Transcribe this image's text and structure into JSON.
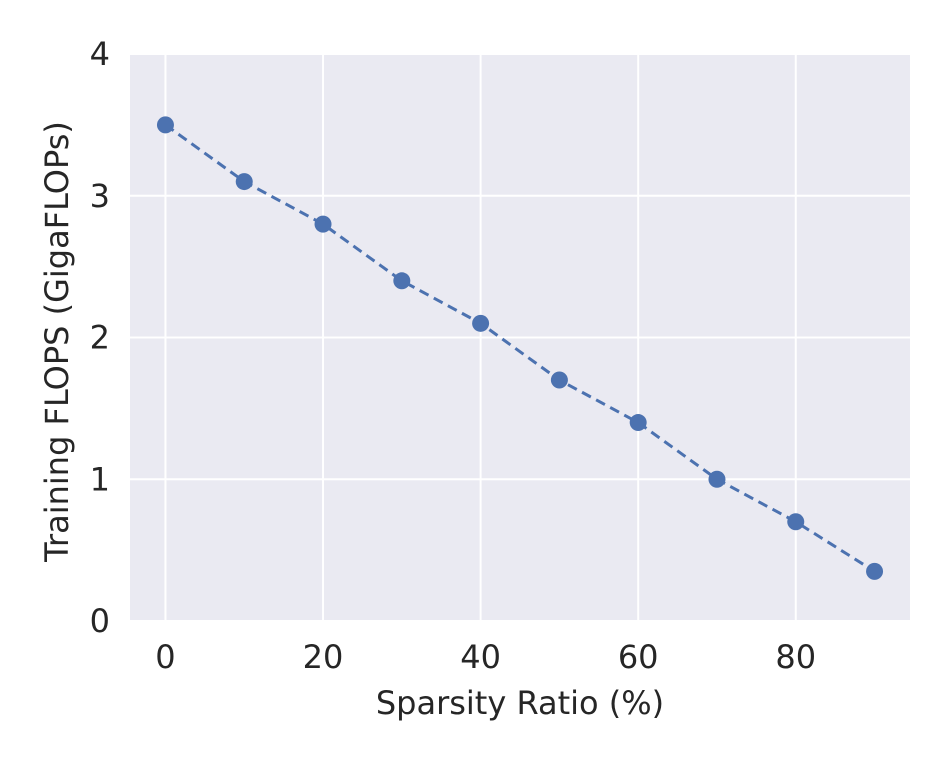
{
  "chart_data": {
    "type": "line",
    "title": "",
    "xlabel": "Sparsity Ratio (%)",
    "ylabel": "Training FLOPS (GigaFLOPs)",
    "xlim": [
      -4.5,
      94.5
    ],
    "ylim": [
      0,
      4
    ],
    "xticks": [
      0,
      20,
      40,
      60,
      80
    ],
    "yticks": [
      0,
      1,
      2,
      3,
      4
    ],
    "grid": true,
    "legend": "none",
    "series": [
      {
        "x": [
          0,
          10,
          20,
          30,
          40,
          50,
          60,
          70,
          80,
          90
        ],
        "y": [
          3.5,
          3.1,
          2.8,
          2.4,
          2.1,
          1.7,
          1.4,
          1.0,
          0.7,
          0.35
        ],
        "color": "#4c72b0",
        "line_style": "dashed",
        "marker": "circle"
      }
    ],
    "colors": {
      "plot_background": "#eaeaf2",
      "grid": "#ffffff",
      "text": "#262626"
    }
  }
}
